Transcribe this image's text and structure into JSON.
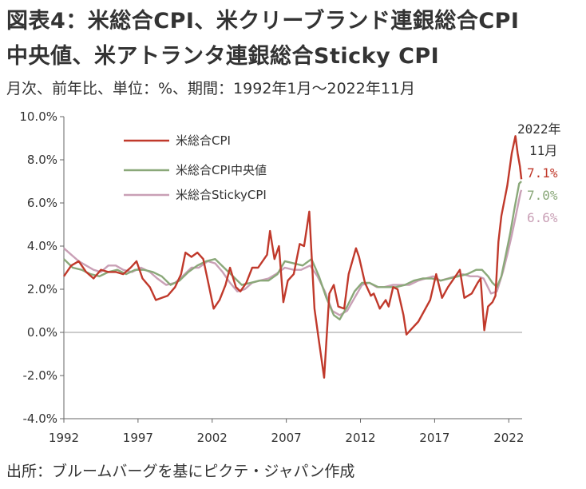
{
  "title_line1": "図表4：米総合CPI、米クリーブランド連銀総合CPI",
  "title_line2": "中央値、米アトランタ連銀総合Sticky CPI",
  "subtitle": "月次、前年比、単位：%、期間：1992年1月～2022年11月",
  "source": "出所：ブルームバーグを基にピクテ・ジャパン作成",
  "annotations": {
    "date_line1": "2022年",
    "date_line2": "11月",
    "headline_value": "7.1%",
    "median_value": "7.0%",
    "sticky_value": "6.6%"
  },
  "chart_data": {
    "type": "line",
    "ylim": [
      -4,
      10
    ],
    "yticks": [
      "10.0%",
      "8.0%",
      "6.0%",
      "4.0%",
      "2.0%",
      "0.0%",
      "-2.0%",
      "-4.0%"
    ],
    "ytick_values": [
      10,
      8,
      6,
      4,
      2,
      0,
      -2,
      -4
    ],
    "xticks": [
      "1992",
      "1997",
      "2002",
      "2007",
      "2012",
      "2017",
      "2022"
    ],
    "xtick_values": [
      1992,
      1997,
      2002,
      2007,
      2012,
      2017,
      2022
    ],
    "xlim": [
      1992.0,
      2022.9
    ],
    "grid": false,
    "legend": "top-left",
    "series": [
      {
        "name": "米総合CPI",
        "color": "#c0392b",
        "points": [
          [
            1992.0,
            2.6
          ],
          [
            1992.5,
            3.1
          ],
          [
            1993.0,
            3.3
          ],
          [
            1993.5,
            2.8
          ],
          [
            1994.0,
            2.5
          ],
          [
            1994.5,
            2.9
          ],
          [
            1995.0,
            2.8
          ],
          [
            1995.5,
            2.8
          ],
          [
            1996.0,
            2.7
          ],
          [
            1996.5,
            3.0
          ],
          [
            1996.9,
            3.3
          ],
          [
            1997.3,
            2.5
          ],
          [
            1997.8,
            2.1
          ],
          [
            1998.2,
            1.5
          ],
          [
            1998.6,
            1.6
          ],
          [
            1999.0,
            1.7
          ],
          [
            1999.5,
            2.1
          ],
          [
            1999.9,
            2.7
          ],
          [
            2000.2,
            3.7
          ],
          [
            2000.6,
            3.5
          ],
          [
            2001.0,
            3.7
          ],
          [
            2001.4,
            3.4
          ],
          [
            2001.8,
            2.1
          ],
          [
            2002.1,
            1.1
          ],
          [
            2002.5,
            1.5
          ],
          [
            2002.9,
            2.2
          ],
          [
            2003.2,
            3.0
          ],
          [
            2003.6,
            2.1
          ],
          [
            2003.9,
            1.9
          ],
          [
            2004.3,
            2.3
          ],
          [
            2004.7,
            3.0
          ],
          [
            2005.1,
            3.0
          ],
          [
            2005.7,
            3.6
          ],
          [
            2005.9,
            4.7
          ],
          [
            2006.2,
            3.4
          ],
          [
            2006.5,
            4.0
          ],
          [
            2006.8,
            1.4
          ],
          [
            2007.1,
            2.4
          ],
          [
            2007.5,
            2.7
          ],
          [
            2007.9,
            4.1
          ],
          [
            2008.2,
            4.0
          ],
          [
            2008.55,
            5.6
          ],
          [
            2008.9,
            1.1
          ],
          [
            2009.2,
            -0.4
          ],
          [
            2009.55,
            -2.1
          ],
          [
            2009.9,
            1.8
          ],
          [
            2010.2,
            2.2
          ],
          [
            2010.5,
            1.2
          ],
          [
            2010.9,
            1.1
          ],
          [
            2011.2,
            2.7
          ],
          [
            2011.7,
            3.9
          ],
          [
            2011.9,
            3.5
          ],
          [
            2012.3,
            2.3
          ],
          [
            2012.7,
            1.7
          ],
          [
            2012.9,
            1.8
          ],
          [
            2013.3,
            1.1
          ],
          [
            2013.7,
            1.5
          ],
          [
            2013.9,
            1.2
          ],
          [
            2014.2,
            2.1
          ],
          [
            2014.5,
            2.0
          ],
          [
            2014.9,
            0.8
          ],
          [
            2015.1,
            -0.1
          ],
          [
            2015.5,
            0.2
          ],
          [
            2015.9,
            0.5
          ],
          [
            2016.3,
            1.0
          ],
          [
            2016.7,
            1.5
          ],
          [
            2017.1,
            2.7
          ],
          [
            2017.5,
            1.6
          ],
          [
            2017.9,
            2.1
          ],
          [
            2018.3,
            2.5
          ],
          [
            2018.7,
            2.9
          ],
          [
            2019.0,
            1.6
          ],
          [
            2019.5,
            1.8
          ],
          [
            2019.9,
            2.3
          ],
          [
            2020.1,
            2.5
          ],
          [
            2020.35,
            0.1
          ],
          [
            2020.6,
            1.2
          ],
          [
            2020.9,
            1.4
          ],
          [
            2021.1,
            1.7
          ],
          [
            2021.3,
            4.2
          ],
          [
            2021.5,
            5.4
          ],
          [
            2021.9,
            6.8
          ],
          [
            2022.2,
            8.3
          ],
          [
            2022.45,
            9.1
          ],
          [
            2022.6,
            8.3
          ],
          [
            2022.75,
            7.7
          ],
          [
            2022.85,
            7.1
          ]
        ]
      },
      {
        "name": "米総合CPI中央値",
        "color": "#8aa879",
        "points": [
          [
            1992.0,
            3.4
          ],
          [
            1992.6,
            3.0
          ],
          [
            1993.2,
            2.9
          ],
          [
            1993.8,
            2.7
          ],
          [
            1994.4,
            2.6
          ],
          [
            1995.0,
            2.8
          ],
          [
            1995.6,
            2.9
          ],
          [
            1996.2,
            2.7
          ],
          [
            1996.8,
            2.9
          ],
          [
            1997.4,
            2.9
          ],
          [
            1998.0,
            2.8
          ],
          [
            1998.6,
            2.6
          ],
          [
            1999.2,
            2.2
          ],
          [
            1999.8,
            2.4
          ],
          [
            2000.4,
            2.8
          ],
          [
            2001.0,
            3.1
          ],
          [
            2001.6,
            3.3
          ],
          [
            2002.2,
            3.4
          ],
          [
            2002.8,
            3.0
          ],
          [
            2003.4,
            2.6
          ],
          [
            2004.0,
            2.2
          ],
          [
            2004.6,
            2.3
          ],
          [
            2005.2,
            2.4
          ],
          [
            2005.8,
            2.4
          ],
          [
            2006.4,
            2.7
          ],
          [
            2006.9,
            3.3
          ],
          [
            2007.5,
            3.2
          ],
          [
            2008.1,
            3.1
          ],
          [
            2008.7,
            3.4
          ],
          [
            2009.2,
            2.6
          ],
          [
            2009.7,
            1.6
          ],
          [
            2010.2,
            0.8
          ],
          [
            2010.6,
            0.6
          ],
          [
            2011.1,
            1.2
          ],
          [
            2011.6,
            1.9
          ],
          [
            2012.1,
            2.3
          ],
          [
            2012.6,
            2.3
          ],
          [
            2013.2,
            2.1
          ],
          [
            2013.8,
            2.1
          ],
          [
            2014.4,
            2.1
          ],
          [
            2015.0,
            2.2
          ],
          [
            2015.6,
            2.4
          ],
          [
            2016.2,
            2.5
          ],
          [
            2016.8,
            2.5
          ],
          [
            2017.4,
            2.4
          ],
          [
            2018.0,
            2.5
          ],
          [
            2018.6,
            2.6
          ],
          [
            2019.2,
            2.7
          ],
          [
            2019.8,
            2.9
          ],
          [
            2020.2,
            2.9
          ],
          [
            2020.6,
            2.6
          ],
          [
            2020.9,
            2.3
          ],
          [
            2021.2,
            2.1
          ],
          [
            2021.5,
            2.6
          ],
          [
            2021.8,
            3.6
          ],
          [
            2022.1,
            4.6
          ],
          [
            2022.4,
            5.8
          ],
          [
            2022.7,
            6.9
          ],
          [
            2022.85,
            7.0
          ]
        ]
      },
      {
        "name": "米総合StickyCPI",
        "color": "#c9a0b6",
        "points": [
          [
            1992.0,
            3.9
          ],
          [
            1992.5,
            3.6
          ],
          [
            1993.0,
            3.3
          ],
          [
            1993.5,
            3.1
          ],
          [
            1994.0,
            2.9
          ],
          [
            1994.5,
            2.8
          ],
          [
            1995.0,
            3.1
          ],
          [
            1995.5,
            3.1
          ],
          [
            1996.0,
            2.9
          ],
          [
            1996.6,
            2.8
          ],
          [
            1997.2,
            3.0
          ],
          [
            1997.8,
            2.8
          ],
          [
            1998.3,
            2.5
          ],
          [
            1998.9,
            2.2
          ],
          [
            1999.5,
            2.3
          ],
          [
            2000.0,
            2.6
          ],
          [
            2000.6,
            3.0
          ],
          [
            2001.1,
            3.0
          ],
          [
            2001.7,
            3.3
          ],
          [
            2002.2,
            3.2
          ],
          [
            2002.7,
            2.8
          ],
          [
            2003.2,
            2.3
          ],
          [
            2003.7,
            1.9
          ],
          [
            2004.2,
            2.0
          ],
          [
            2004.7,
            2.3
          ],
          [
            2005.2,
            2.4
          ],
          [
            2005.8,
            2.5
          ],
          [
            2006.3,
            2.7
          ],
          [
            2006.9,
            3.0
          ],
          [
            2007.5,
            2.9
          ],
          [
            2008.0,
            2.9
          ],
          [
            2008.6,
            3.1
          ],
          [
            2009.1,
            2.6
          ],
          [
            2009.6,
            1.9
          ],
          [
            2010.1,
            1.0
          ],
          [
            2010.6,
            0.8
          ],
          [
            2011.1,
            1.0
          ],
          [
            2011.6,
            1.6
          ],
          [
            2012.1,
            2.2
          ],
          [
            2012.6,
            2.3
          ],
          [
            2013.1,
            2.1
          ],
          [
            2013.6,
            2.1
          ],
          [
            2014.2,
            2.2
          ],
          [
            2014.8,
            2.2
          ],
          [
            2015.3,
            2.2
          ],
          [
            2015.9,
            2.4
          ],
          [
            2016.4,
            2.5
          ],
          [
            2016.9,
            2.6
          ],
          [
            2017.4,
            2.4
          ],
          [
            2017.9,
            2.5
          ],
          [
            2018.4,
            2.6
          ],
          [
            2018.9,
            2.7
          ],
          [
            2019.4,
            2.6
          ],
          [
            2019.9,
            2.6
          ],
          [
            2020.3,
            2.5
          ],
          [
            2020.8,
            1.8
          ],
          [
            2021.2,
            1.9
          ],
          [
            2021.6,
            2.8
          ],
          [
            2021.9,
            3.6
          ],
          [
            2022.2,
            4.5
          ],
          [
            2022.5,
            5.5
          ],
          [
            2022.8,
            6.5
          ],
          [
            2022.85,
            6.6
          ]
        ]
      }
    ]
  }
}
